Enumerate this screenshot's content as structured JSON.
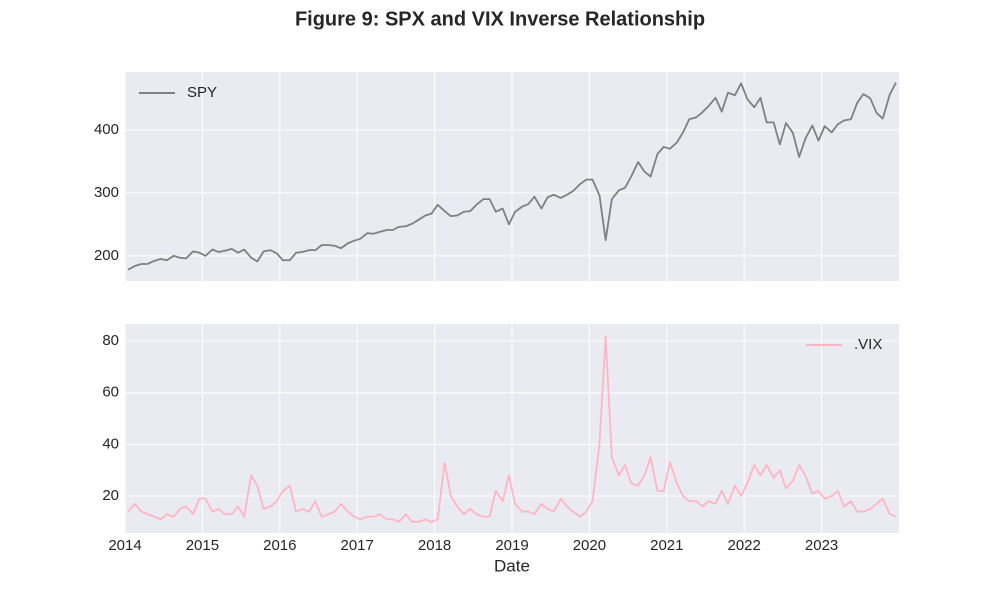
{
  "title": "Figure 9: SPX and VIX Inverse Relationship",
  "chart_data": [
    {
      "type": "line",
      "x": [
        2014.04,
        2014.13,
        2014.21,
        2014.29,
        2014.38,
        2014.46,
        2014.54,
        2014.63,
        2014.71,
        2014.79,
        2014.88,
        2014.96,
        2015.04,
        2015.13,
        2015.21,
        2015.29,
        2015.38,
        2015.46,
        2015.54,
        2015.63,
        2015.71,
        2015.79,
        2015.88,
        2015.96,
        2016.04,
        2016.13,
        2016.21,
        2016.29,
        2016.38,
        2016.46,
        2016.54,
        2016.63,
        2016.71,
        2016.79,
        2016.88,
        2016.96,
        2017.04,
        2017.13,
        2017.21,
        2017.29,
        2017.38,
        2017.46,
        2017.54,
        2017.63,
        2017.71,
        2017.79,
        2017.88,
        2017.96,
        2018.04,
        2018.13,
        2018.21,
        2018.29,
        2018.38,
        2018.46,
        2018.54,
        2018.63,
        2018.71,
        2018.79,
        2018.88,
        2018.96,
        2019.04,
        2019.13,
        2019.21,
        2019.29,
        2019.38,
        2019.46,
        2019.54,
        2019.63,
        2019.71,
        2019.79,
        2019.88,
        2019.96,
        2020.04,
        2020.13,
        2020.21,
        2020.29,
        2020.38,
        2020.46,
        2020.54,
        2020.63,
        2020.71,
        2020.79,
        2020.88,
        2020.96,
        2021.04,
        2021.13,
        2021.21,
        2021.29,
        2021.38,
        2021.46,
        2021.54,
        2021.63,
        2021.71,
        2021.79,
        2021.88,
        2021.96,
        2022.04,
        2022.13,
        2022.21,
        2022.29,
        2022.38,
        2022.46,
        2022.54,
        2022.63,
        2022.71,
        2022.79,
        2022.88,
        2022.96,
        2023.04,
        2023.13,
        2023.21,
        2023.29,
        2023.38,
        2023.46,
        2023.54,
        2023.63,
        2023.71,
        2023.79,
        2023.88,
        2023.96
      ],
      "series": [
        {
          "name": "SPY",
          "color": "#808080",
          "values": [
            178,
            184,
            187,
            187,
            192,
            195,
            193,
            200,
            197,
            196,
            207,
            205,
            200,
            210,
            206,
            208,
            211,
            205,
            210,
            197,
            191,
            207,
            209,
            204,
            193,
            193,
            205,
            206,
            209,
            209,
            217,
            217,
            216,
            212,
            220,
            224,
            227,
            236,
            235,
            238,
            241,
            241,
            246,
            247,
            251,
            257,
            264,
            267,
            281,
            271,
            263,
            264,
            270,
            271,
            281,
            290,
            290,
            270,
            275,
            250,
            270,
            278,
            282,
            294,
            275,
            293,
            297,
            292,
            297,
            303,
            314,
            321,
            321,
            296,
            225,
            290,
            304,
            308,
            326,
            349,
            334,
            326,
            362,
            373,
            370,
            380,
            396,
            417,
            420,
            428,
            438,
            451,
            429,
            459,
            455,
            474,
            449,
            436,
            451,
            412,
            412,
            377,
            411,
            395,
            357,
            386,
            407,
            383,
            406,
            396,
            409,
            415,
            417,
            443,
            457,
            450,
            427,
            418,
            456,
            475
          ]
        }
      ],
      "xlim": [
        2014,
        2024
      ],
      "xticks": [
        2014,
        2015,
        2016,
        2017,
        2018,
        2019,
        2020,
        2021,
        2022,
        2023
      ],
      "show_xtick_labels": false,
      "ylim": [
        160,
        492
      ],
      "yticks": [
        200,
        300,
        400
      ],
      "grid": true,
      "legend": "upper left"
    },
    {
      "type": "line",
      "x": [
        2014.04,
        2014.13,
        2014.21,
        2014.29,
        2014.38,
        2014.46,
        2014.54,
        2014.63,
        2014.71,
        2014.79,
        2014.88,
        2014.96,
        2015.04,
        2015.13,
        2015.21,
        2015.29,
        2015.38,
        2015.46,
        2015.54,
        2015.63,
        2015.71,
        2015.79,
        2015.88,
        2015.96,
        2016.04,
        2016.13,
        2016.21,
        2016.29,
        2016.38,
        2016.46,
        2016.54,
        2016.63,
        2016.71,
        2016.79,
        2016.88,
        2016.96,
        2017.04,
        2017.13,
        2017.21,
        2017.29,
        2017.38,
        2017.46,
        2017.54,
        2017.63,
        2017.71,
        2017.79,
        2017.88,
        2017.96,
        2018.04,
        2018.13,
        2018.21,
        2018.29,
        2018.38,
        2018.46,
        2018.54,
        2018.63,
        2018.71,
        2018.79,
        2018.88,
        2018.96,
        2019.04,
        2019.13,
        2019.21,
        2019.29,
        2019.38,
        2019.46,
        2019.54,
        2019.63,
        2019.71,
        2019.79,
        2019.88,
        2019.96,
        2020.04,
        2020.13,
        2020.21,
        2020.29,
        2020.38,
        2020.46,
        2020.54,
        2020.63,
        2020.71,
        2020.79,
        2020.88,
        2020.96,
        2021.04,
        2021.13,
        2021.21,
        2021.29,
        2021.38,
        2021.46,
        2021.54,
        2021.63,
        2021.71,
        2021.79,
        2021.88,
        2021.96,
        2022.04,
        2022.13,
        2022.21,
        2022.29,
        2022.38,
        2022.46,
        2022.54,
        2022.63,
        2022.71,
        2022.79,
        2022.88,
        2022.96,
        2023.04,
        2023.13,
        2023.21,
        2023.29,
        2023.38,
        2023.46,
        2023.54,
        2023.63,
        2023.71,
        2023.79,
        2023.88,
        2023.96
      ],
      "series": [
        {
          "name": ".VIX",
          "color": "#ffb6c1",
          "values": [
            14,
            17,
            14,
            13,
            12,
            11,
            13,
            12,
            15,
            16,
            13,
            19,
            19,
            14,
            15,
            13,
            13,
            16,
            12,
            28,
            24,
            15,
            16,
            18,
            22,
            24,
            14,
            15,
            14,
            18,
            12,
            13,
            14,
            17,
            14,
            12,
            11,
            12,
            12,
            13,
            11,
            11,
            10,
            13,
            10,
            10,
            11,
            10,
            11,
            33,
            20,
            16,
            13,
            15,
            13,
            12,
            12,
            22,
            18,
            28,
            17,
            14,
            14,
            13,
            17,
            15,
            14,
            19,
            16,
            14,
            12,
            14,
            18,
            40,
            82,
            35,
            28,
            32,
            25,
            24,
            28,
            35,
            22,
            22,
            33,
            25,
            20,
            18,
            18,
            16,
            18,
            17,
            22,
            17,
            24,
            20,
            25,
            32,
            28,
            32,
            27,
            30,
            23,
            26,
            32,
            28,
            21,
            22,
            19,
            20,
            22,
            16,
            18,
            14,
            14,
            15,
            17,
            19,
            13,
            12
          ]
        }
      ],
      "xlim": [
        2014,
        2024
      ],
      "xticks": [
        2014,
        2015,
        2016,
        2017,
        2018,
        2019,
        2020,
        2021,
        2022,
        2023
      ],
      "show_xtick_labels": true,
      "xlabel": "Date",
      "ylim": [
        5.7,
        86.6
      ],
      "yticks": [
        20,
        40,
        60,
        80
      ],
      "grid": true,
      "legend": "upper right"
    }
  ]
}
